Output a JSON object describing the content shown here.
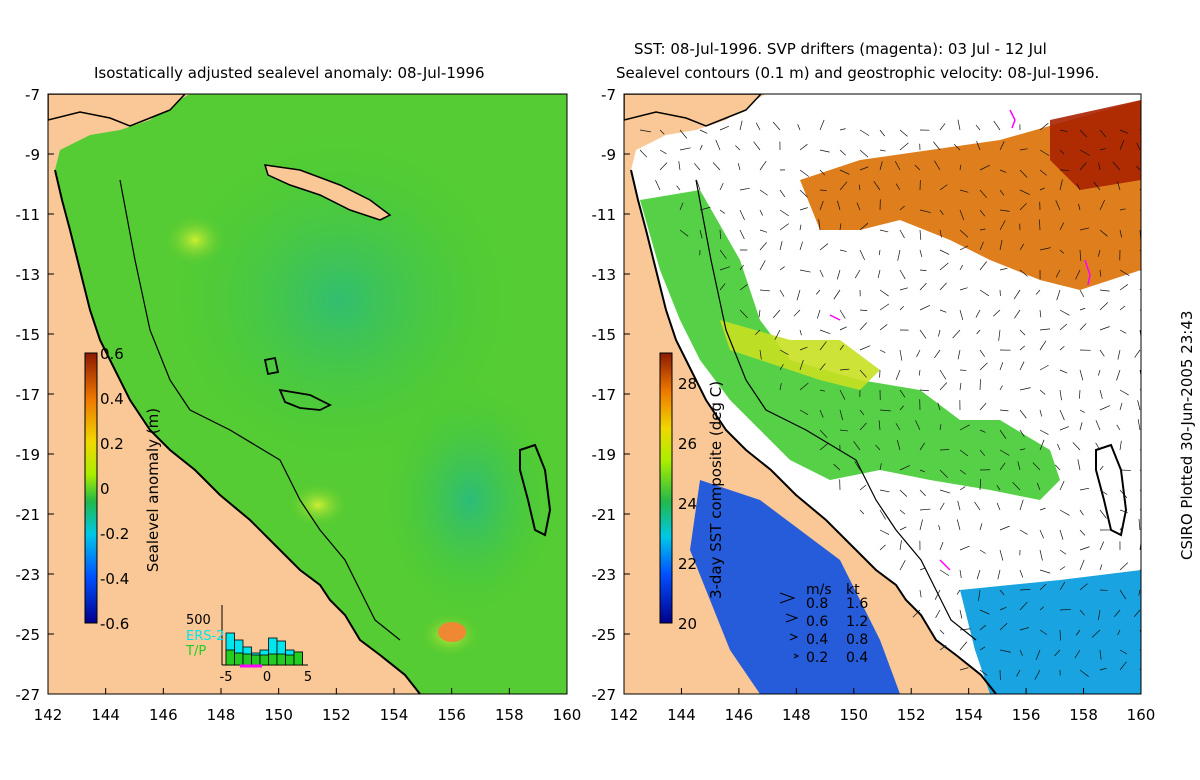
{
  "left_panel": {
    "title": "Isostatically adjusted sealevel anomaly: 08-Jul-1996",
    "colorbar": {
      "label": "Sealevel anomaly (m)",
      "ticks": [
        "0.6",
        "0.4",
        "0.2",
        "0",
        "-0.2",
        "-0.4",
        "-0.6"
      ],
      "range": [
        -0.6,
        0.6
      ]
    },
    "histogram": {
      "ymax_label": "500",
      "xticks": [
        "-5",
        "0",
        "5"
      ],
      "legend": [
        "ERS-2",
        "T/P"
      ],
      "legend_colors": [
        "#00e5ee",
        "#22cc22"
      ],
      "ers2_counts": [
        320,
        250,
        180,
        120,
        150,
        270,
        240,
        150,
        130
      ],
      "tp_counts": [
        150,
        120,
        110,
        100,
        100,
        110,
        110,
        100,
        130
      ]
    }
  },
  "right_panel": {
    "title_line1": "SST: 08-Jul-1996. SVP drifters (magenta): 03 Jul - 12 Jul",
    "title_line2": "Sealevel contours (0.1 m) and geostrophic velocity: 08-Jul-1996.",
    "colorbar": {
      "label": "3-day SST composite (deg C)",
      "ticks": [
        "28",
        "26",
        "24",
        "22",
        "20"
      ],
      "range": [
        20,
        29
      ]
    },
    "velocity_legend": {
      "header": [
        "m/s",
        "kt"
      ],
      "rows": [
        {
          "ms": "0.8",
          "kt": "1.6"
        },
        {
          "ms": "0.6",
          "kt": "1.2"
        },
        {
          "ms": "0.4",
          "kt": "0.8"
        },
        {
          "ms": "0.2",
          "kt": "0.4"
        }
      ]
    }
  },
  "axes": {
    "x_ticks": [
      "142",
      "144",
      "146",
      "148",
      "150",
      "152",
      "154",
      "156",
      "158",
      "160"
    ],
    "y_ticks": [
      "-7",
      "-9",
      "-11",
      "-13",
      "-15",
      "-17",
      "-19",
      "-21",
      "-23",
      "-25",
      "-27"
    ],
    "lon_range": [
      142,
      160
    ],
    "lat_range": [
      -27,
      -7
    ]
  },
  "credit": "CSIRO Plotted 30-Jun-2005 23:43",
  "colors": {
    "land": "#f9c896",
    "sea_base": "#44cc33",
    "white_gap": "#ffffff"
  }
}
